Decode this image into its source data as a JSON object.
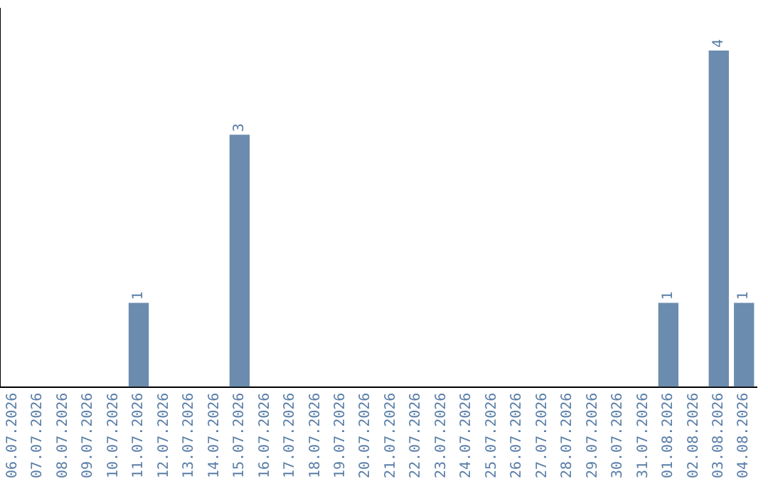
{
  "chart_data": {
    "type": "bar",
    "categories": [
      "06.07.2026",
      "07.07.2026",
      "08.07.2026",
      "09.07.2026",
      "10.07.2026",
      "11.07.2026",
      "12.07.2026",
      "13.07.2026",
      "14.07.2026",
      "15.07.2026",
      "16.07.2026",
      "17.07.2026",
      "18.07.2026",
      "19.07.2026",
      "20.07.2026",
      "21.07.2026",
      "22.07.2026",
      "23.07.2026",
      "24.07.2026",
      "25.07.2026",
      "26.07.2026",
      "27.07.2026",
      "28.07.2026",
      "29.07.2026",
      "30.07.2026",
      "31.07.2026",
      "01.08.2026",
      "02.08.2026",
      "03.08.2026",
      "04.08.2026"
    ],
    "series": [
      {
        "color": "#6b8cae",
        "values": [
          0,
          0,
          0,
          0,
          0,
          1,
          0,
          0,
          0,
          3,
          0,
          0,
          0,
          0,
          0,
          0,
          0,
          0,
          0,
          0,
          0,
          0,
          0,
          0,
          0,
          0,
          1,
          0,
          4,
          1
        ],
        "value_labels": [
          null,
          null,
          null,
          null,
          null,
          "1",
          null,
          null,
          null,
          "3",
          null,
          null,
          null,
          null,
          null,
          null,
          null,
          null,
          null,
          null,
          null,
          null,
          null,
          null,
          null,
          null,
          "1",
          null,
          "4",
          "1"
        ]
      }
    ],
    "grid": false,
    "legend": false,
    "tick_labels": "x"
  }
}
